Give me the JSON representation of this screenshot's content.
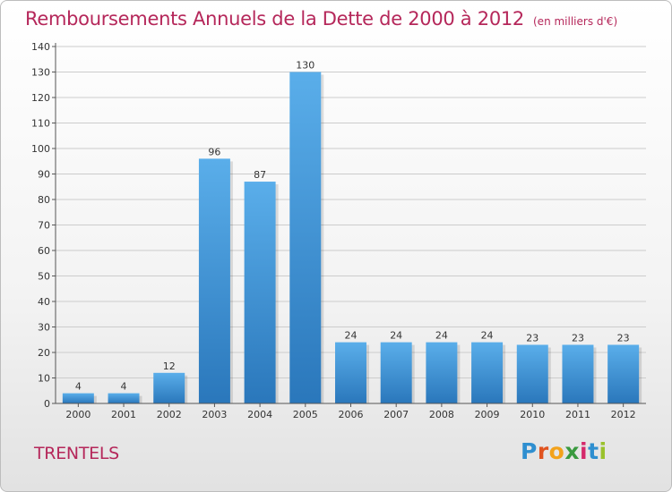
{
  "title": "Remboursements Annuels de la Dette de 2000 à 2012",
  "unit_note": "(en milliers d'€)",
  "commune": "TRENTELS",
  "brand": {
    "text": "Proxiti",
    "letters": [
      "P",
      "r",
      "o",
      "x",
      "i",
      "t",
      "i"
    ],
    "letter_colors": [
      "#2f8fd0",
      "#e0531f",
      "#f3a21b",
      "#3a9a3f",
      "#d52a6b",
      "#2f8fd0",
      "#9ac22c"
    ]
  },
  "colors": {
    "bar_top": "#5aaeea",
    "bar_bottom": "#2a77bb",
    "title": "#b5275a",
    "grid": "#cccccc",
    "axis": "#555555"
  },
  "chart_data": {
    "type": "bar",
    "title": "Remboursements Annuels de la Dette de 2000 à 2012",
    "categories": [
      "2000",
      "2001",
      "2002",
      "2003",
      "2004",
      "2005",
      "2006",
      "2007",
      "2008",
      "2009",
      "2010",
      "2011",
      "2012"
    ],
    "values": [
      4,
      4,
      12,
      96,
      87,
      130,
      24,
      24,
      24,
      24,
      23,
      23,
      23
    ],
    "ylim": [
      0,
      140
    ],
    "yticks": [
      0,
      10,
      20,
      30,
      40,
      50,
      60,
      70,
      80,
      90,
      100,
      110,
      120,
      130,
      140
    ],
    "grid": true,
    "legend": "none"
  }
}
